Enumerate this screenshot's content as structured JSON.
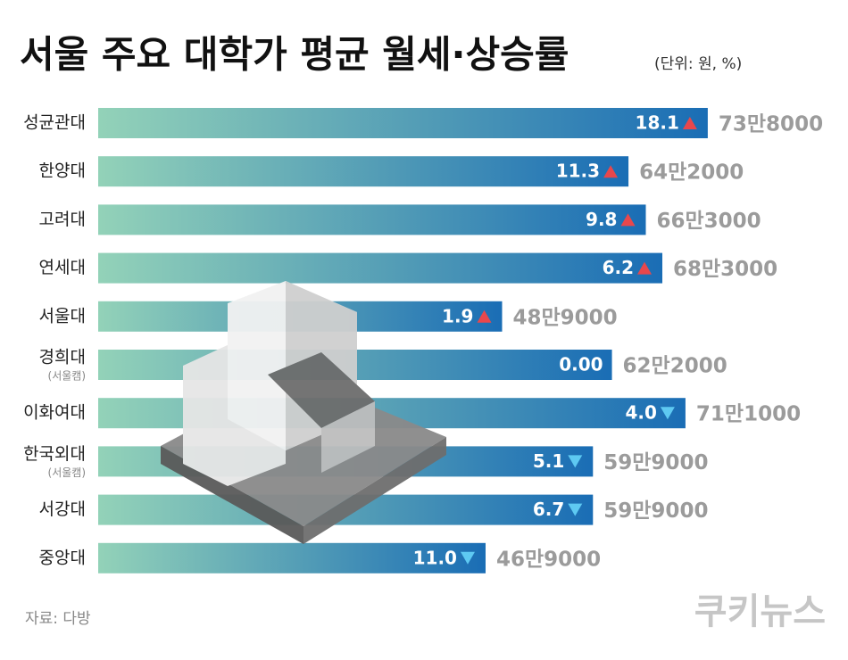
{
  "chart_data": {
    "type": "bar",
    "orientation": "horizontal",
    "title": "서울 주요 대학가 평균 월세·상승률",
    "unit": "(단위: 원, %)",
    "source": "자료: 다방",
    "logo": "쿠키뉴스",
    "categories": [
      "성균관대",
      "한양대",
      "고려대",
      "연세대",
      "서울대",
      "경희대",
      "이화여대",
      "한국외대",
      "서강대",
      "중앙대"
    ],
    "category_notes": [
      null,
      null,
      null,
      null,
      null,
      "(서울캠)",
      null,
      "(서울캠)",
      null,
      null
    ],
    "values": [
      738000,
      642000,
      663000,
      683000,
      489000,
      622000,
      711000,
      599000,
      599000,
      469000
    ],
    "value_labels": [
      "73만8000",
      "64만2000",
      "66만3000",
      "68만3000",
      "48만9000",
      "62만2000",
      "71만1000",
      "59만9000",
      "59만9000",
      "46만9000"
    ],
    "changes": [
      18.1,
      11.3,
      9.8,
      6.2,
      1.9,
      0,
      -4.0,
      -5.1,
      -6.7,
      -11.0
    ],
    "change_labels": [
      "18.1",
      "11.3",
      "9.8",
      "6.2",
      "1.9",
      "0.00",
      "4.0",
      "5.1",
      "6.7",
      "11.0"
    ],
    "xlim": [
      0,
      750000
    ],
    "color_start": "#93d2b8",
    "color_end": "#1a6db5",
    "up_color": "#e8474c",
    "down_color": "#5ec9f2"
  }
}
